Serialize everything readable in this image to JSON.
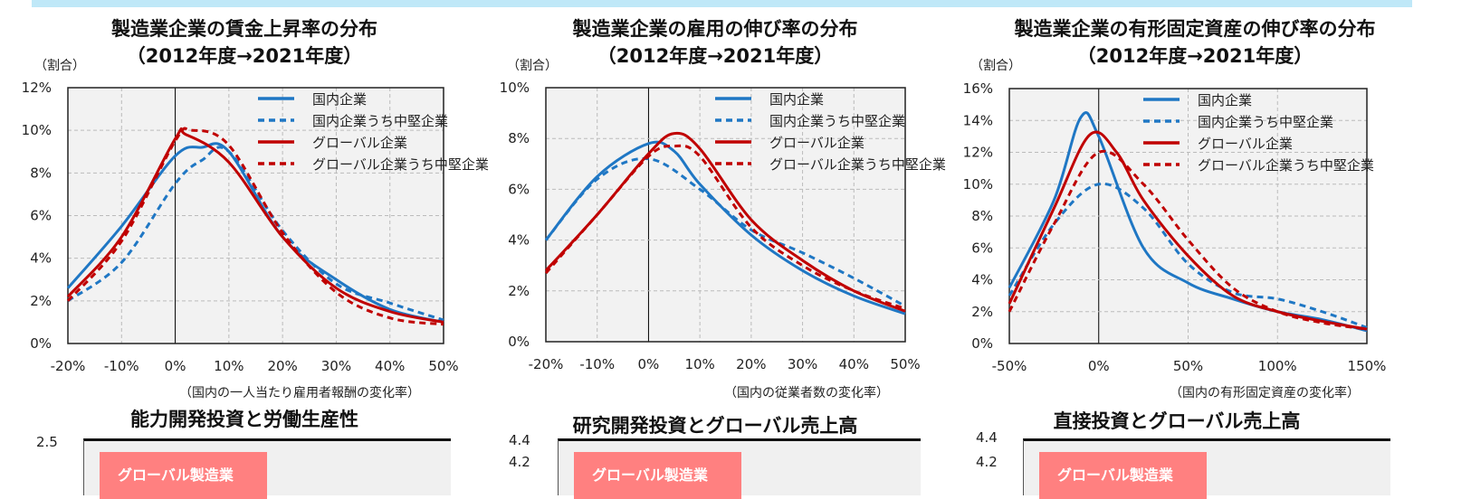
{
  "legend": [
    "国内企業",
    "国内企業うち中堅企業",
    "グローバル企業",
    "グローバル企業うち中堅企業"
  ],
  "colors": {
    "domestic": "#1f77c4",
    "global": "#c00000",
    "topbar": "#bfe8f8",
    "badge": "#ff8080"
  },
  "chart_data": [
    {
      "type": "line",
      "title": "製造業企業の賃金上昇率の分布",
      "subtitle": "（2012年度→2021年度）",
      "ylabel": "（割合）",
      "xlabel": "（国内の一人当たり雇用者報酬の変化率）",
      "xlim": [
        -20,
        50
      ],
      "ylim": [
        0,
        12
      ],
      "xticks": [
        "-20%",
        "-10%",
        "0%",
        "10%",
        "20%",
        "30%",
        "40%",
        "50%"
      ],
      "yticks": [
        "0%",
        "2%",
        "4%",
        "6%",
        "8%",
        "10%",
        "12%"
      ],
      "grid": true,
      "legend_position": "top-right",
      "series": [
        {
          "name": "国内企業",
          "x": [
            -20,
            -10,
            0,
            5,
            10,
            20,
            30,
            40,
            50
          ],
          "y": [
            2.6,
            5.5,
            8.8,
            9.2,
            9.0,
            5.0,
            3.0,
            1.6,
            1.0
          ]
        },
        {
          "name": "国内企業うち中堅企業",
          "x": [
            -20,
            -10,
            0,
            5,
            10,
            20,
            30,
            40,
            50
          ],
          "y": [
            2.0,
            3.8,
            7.5,
            8.6,
            9.0,
            5.3,
            2.8,
            1.9,
            1.1
          ]
        },
        {
          "name": "グローバル企業",
          "x": [
            -20,
            -10,
            0,
            2,
            10,
            20,
            30,
            40,
            50
          ],
          "y": [
            2.2,
            5.0,
            9.6,
            9.8,
            8.5,
            5.0,
            2.6,
            1.5,
            1.0
          ]
        },
        {
          "name": "グローバル企業うち中堅企業",
          "x": [
            -20,
            -10,
            0,
            3,
            10,
            20,
            30,
            40,
            50
          ],
          "y": [
            2.0,
            4.8,
            9.5,
            10.0,
            9.3,
            5.2,
            2.4,
            1.2,
            0.9
          ]
        }
      ]
    },
    {
      "type": "line",
      "title": "製造業企業の雇用の伸び率の分布",
      "subtitle": "（2012年度→2021年度）",
      "ylabel": "（割合）",
      "xlabel": "（国内の従業者数の変化率）",
      "xlim": [
        -20,
        50
      ],
      "ylim": [
        0,
        10
      ],
      "xticks": [
        "-20%",
        "-10%",
        "0%",
        "10%",
        "20%",
        "30%",
        "40%",
        "50%"
      ],
      "yticks": [
        "0%",
        "2%",
        "4%",
        "6%",
        "8%",
        "10%"
      ],
      "grid": true,
      "legend_position": "top-right",
      "series": [
        {
          "name": "国内企業",
          "x": [
            -20,
            -10,
            0,
            5,
            10,
            20,
            30,
            40,
            50
          ],
          "y": [
            4.0,
            6.5,
            7.8,
            7.5,
            6.2,
            4.2,
            2.8,
            1.8,
            1.1
          ]
        },
        {
          "name": "国内企業うち中堅企業",
          "x": [
            -20,
            -10,
            0,
            10,
            20,
            30,
            40,
            50
          ],
          "y": [
            4.0,
            6.4,
            7.2,
            6.0,
            4.4,
            3.5,
            2.5,
            1.4
          ]
        },
        {
          "name": "グローバル企業",
          "x": [
            -20,
            -10,
            0,
            5,
            10,
            20,
            30,
            40,
            50
          ],
          "y": [
            2.8,
            5.0,
            7.4,
            8.2,
            7.6,
            4.8,
            3.2,
            2.0,
            1.2
          ]
        },
        {
          "name": "グローバル企業うち中堅企業",
          "x": [
            -20,
            -10,
            0,
            5,
            10,
            20,
            30,
            40,
            50
          ],
          "y": [
            2.7,
            5.0,
            7.3,
            7.7,
            7.3,
            4.5,
            3.0,
            2.0,
            1.3
          ]
        }
      ]
    },
    {
      "type": "line",
      "title": "製造業企業の有形固定資産の伸び率の分布",
      "subtitle": "（2012年度→2021年度）",
      "ylabel": "（割合）",
      "xlabel": "（国内の有形固定資産の変化率）",
      "xlim": [
        -50,
        150
      ],
      "ylim": [
        0,
        16
      ],
      "xticks": [
        "-50%",
        "0%",
        "50%",
        "100%",
        "150%"
      ],
      "yticks": [
        "0%",
        "2%",
        "4%",
        "6%",
        "8%",
        "10%",
        "12%",
        "14%",
        "16%"
      ],
      "grid": true,
      "legend_position": "top-right",
      "series": [
        {
          "name": "国内企業",
          "x": [
            -50,
            -25,
            -10,
            0,
            25,
            50,
            75,
            100,
            125,
            150
          ],
          "y": [
            3.5,
            9.0,
            14.2,
            13.0,
            6.0,
            3.8,
            2.8,
            2.0,
            1.5,
            0.8
          ]
        },
        {
          "name": "国内企業うち中堅企業",
          "x": [
            -50,
            -25,
            0,
            25,
            50,
            75,
            100,
            125,
            150
          ],
          "y": [
            3.0,
            7.5,
            10.0,
            8.5,
            5.0,
            3.2,
            2.8,
            2.0,
            1.0
          ]
        },
        {
          "name": "グローバル企業",
          "x": [
            -50,
            -25,
            -5,
            10,
            25,
            50,
            75,
            100,
            125,
            150
          ],
          "y": [
            2.5,
            8.5,
            13.1,
            12.0,
            9.0,
            5.5,
            3.0,
            2.0,
            1.4,
            0.9
          ]
        },
        {
          "name": "グローバル企業うち中堅企業",
          "x": [
            -50,
            -25,
            0,
            25,
            50,
            75,
            100,
            125,
            150
          ],
          "y": [
            2.0,
            7.5,
            12.0,
            10.0,
            6.5,
            3.5,
            2.0,
            1.3,
            0.9
          ]
        }
      ]
    }
  ],
  "bottom": [
    {
      "title": "能力開発投資と労働生産性",
      "ytick": "2.5",
      "badge": "グローバル製造業"
    },
    {
      "title": "研究開発投資とグローバル売上高",
      "ytick": "4.4",
      "ytick2": "4.2",
      "badge": "グローバル製造業"
    },
    {
      "title": "直接投資とグローバル売上高",
      "ytick": "4.4",
      "ytick2": "4.2",
      "badge": "グローバル製造業"
    }
  ]
}
